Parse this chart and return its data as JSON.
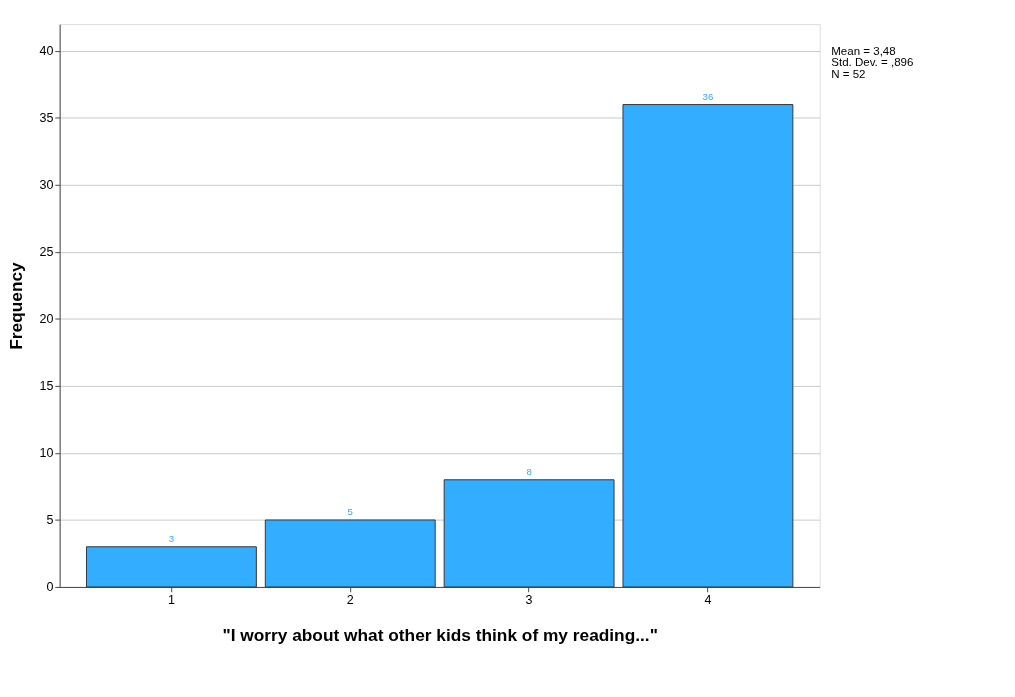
{
  "chart_data": {
    "type": "bar",
    "xlabel": "\"I worry about what other kids think of my reading...\"",
    "ylabel": "Frequency",
    "categories": [
      "1",
      "2",
      "3",
      "4"
    ],
    "values": [
      3,
      5,
      8,
      36
    ],
    "color": "#33adff",
    "ylim": [
      0,
      42
    ],
    "yticks": [
      0,
      5,
      10,
      15,
      20,
      25,
      30,
      35,
      40
    ],
    "grid": "y",
    "data_labels": true,
    "annotations": [
      "Mean = 3,48",
      "Std. Dev. = ,896",
      "N = 52"
    ]
  }
}
